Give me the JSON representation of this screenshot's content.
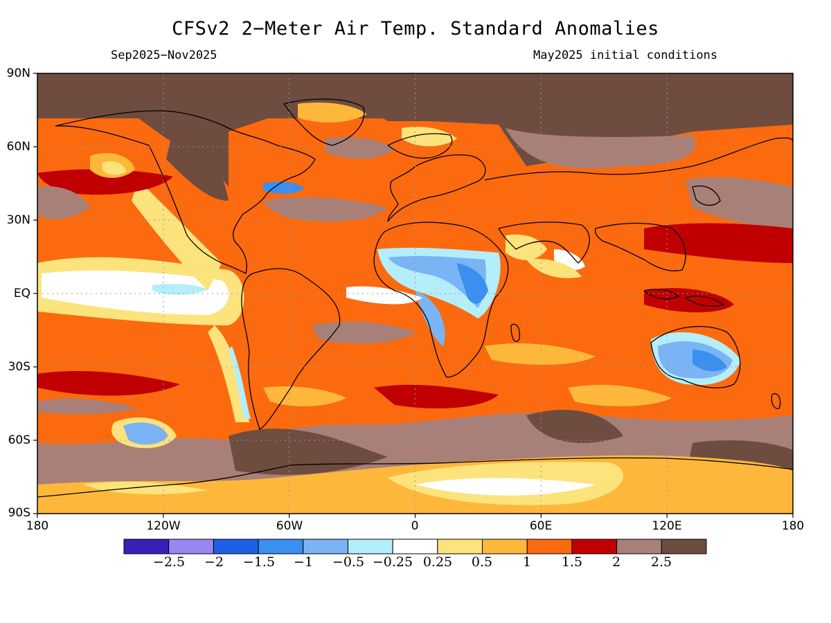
{
  "header": {
    "title": "CFSv2 2−Meter Air Temp. Standard Anomalies",
    "period": "Sep2025−Nov2025",
    "init": "May2025 initial conditions"
  },
  "axes": {
    "lat_labels": [
      "90N",
      "60N",
      "30N",
      "EQ",
      "30S",
      "60S",
      "90S"
    ],
    "lon_labels": [
      "180",
      "120W",
      "60W",
      "0",
      "60E",
      "120E",
      "180"
    ]
  },
  "colorbar": {
    "colors": [
      "#3a1fb8",
      "#9a86f0",
      "#1f5fe6",
      "#3a8ff0",
      "#7ab4f5",
      "#b4eefa",
      "#ffffff",
      "#fde37c",
      "#fdb83c",
      "#fb6a0f",
      "#c00000",
      "#a88078",
      "#6e4c40"
    ],
    "labels": [
      "−2.5",
      "−2",
      "−1.5",
      "−1",
      "−0.5",
      "−0.25",
      "0.25",
      "0.5",
      "1",
      "1.5",
      "2",
      "2.5"
    ]
  }
}
